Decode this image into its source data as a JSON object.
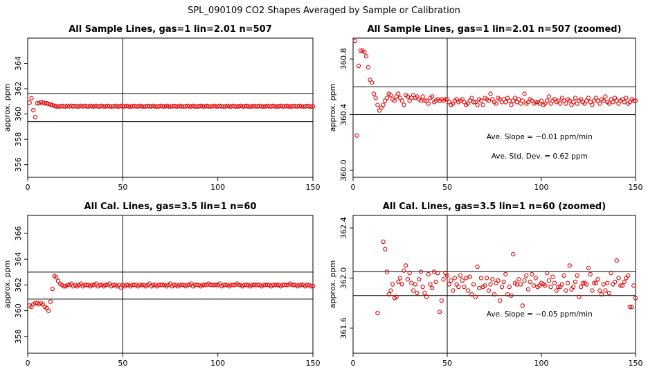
{
  "figure": {
    "title": "SPL_090109  CO2 Shapes Averaged by Sample or Calibration"
  },
  "chart_data": [
    {
      "type": "scatter",
      "title": "All Sample Lines, gas=1 lin=2.01 n=507",
      "xlabel": "",
      "ylabel": "approx. ppm",
      "xlim": [
        0,
        150
      ],
      "ylim": [
        355,
        366
      ],
      "xticks": [
        0,
        50,
        100,
        150
      ],
      "yticks": [
        356,
        358,
        360,
        362,
        364
      ],
      "vline": 50,
      "hlines": [
        359.4,
        361.6
      ],
      "color": "#e00000",
      "x": [
        1,
        2,
        3,
        4,
        5,
        6,
        7,
        8,
        9,
        10,
        11,
        12,
        13,
        14,
        15,
        16,
        17,
        18,
        19,
        20,
        21,
        22,
        23,
        24,
        25,
        26,
        27,
        28,
        29,
        30,
        31,
        32,
        33,
        34,
        35,
        36,
        37,
        38,
        39,
        40,
        41,
        42,
        43,
        44,
        45,
        46,
        47,
        48,
        49,
        50,
        51,
        52,
        53,
        54,
        55,
        56,
        57,
        58,
        59,
        60,
        61,
        62,
        63,
        64,
        65,
        66,
        67,
        68,
        69,
        70,
        71,
        72,
        73,
        74,
        75,
        76,
        77,
        78,
        79,
        80,
        81,
        82,
        83,
        84,
        85,
        86,
        87,
        88,
        89,
        90,
        91,
        92,
        93,
        94,
        95,
        96,
        97,
        98,
        99,
        100,
        101,
        102,
        103,
        104,
        105,
        106,
        107,
        108,
        109,
        110,
        111,
        112,
        113,
        114,
        115,
        116,
        117,
        118,
        119,
        120,
        121,
        122,
        123,
        124,
        125,
        126,
        127,
        128,
        129,
        130,
        131,
        132,
        133,
        134,
        135,
        136,
        137,
        138,
        139,
        140,
        141,
        142,
        143,
        144,
        145,
        146,
        147,
        148,
        149,
        150
      ],
      "y": [
        360.9,
        361.25,
        360.3,
        359.75,
        360.85,
        360.85,
        360.95,
        360.9,
        360.85,
        360.85,
        360.8,
        360.75,
        360.7,
        360.65,
        360.6,
        360.6,
        360.6,
        360.65,
        360.6,
        360.6,
        360.65,
        360.6,
        360.65,
        360.6,
        360.65,
        360.6,
        360.6,
        360.65,
        360.6,
        360.65,
        360.6,
        360.6,
        360.65,
        360.6,
        360.6,
        360.65,
        360.6,
        360.6,
        360.65,
        360.6,
        360.6,
        360.65,
        360.6,
        360.6,
        360.6,
        360.65,
        360.6,
        360.6,
        360.65,
        360.6,
        360.6,
        360.65,
        360.6,
        360.6,
        360.6,
        360.65,
        360.6,
        360.6,
        360.65,
        360.6,
        360.6,
        360.6,
        360.65,
        360.6,
        360.6,
        360.65,
        360.6,
        360.6,
        360.6,
        360.65,
        360.6,
        360.6,
        360.65,
        360.6,
        360.6,
        360.6,
        360.65,
        360.6,
        360.6,
        360.65,
        360.6,
        360.6,
        360.6,
        360.65,
        360.6,
        360.6,
        360.65,
        360.6,
        360.6,
        360.6,
        360.65,
        360.6,
        360.6,
        360.65,
        360.6,
        360.6,
        360.6,
        360.65,
        360.6,
        360.6,
        360.65,
        360.6,
        360.6,
        360.6,
        360.65,
        360.6,
        360.6,
        360.65,
        360.6,
        360.6,
        360.6,
        360.65,
        360.6,
        360.6,
        360.65,
        360.6,
        360.6,
        360.6,
        360.65,
        360.6,
        360.6,
        360.65,
        360.6,
        360.6,
        360.6,
        360.65,
        360.6,
        360.6,
        360.65,
        360.6,
        360.6,
        360.6,
        360.65,
        360.6,
        360.6,
        360.65,
        360.6,
        360.6,
        360.6,
        360.65,
        360.6,
        360.6,
        360.65,
        360.6,
        360.6,
        360.6,
        360.65,
        360.6,
        360.6,
        360.6
      ],
      "annotations": []
    },
    {
      "type": "scatter",
      "title": "All Sample Lines, gas=1 lin=2.01 n=507 (zoomed)",
      "xlabel": "",
      "ylabel": "approx. ppm",
      "xlim": [
        0,
        150
      ],
      "ylim": [
        359.95,
        360.95
      ],
      "xticks": [
        0,
        50,
        100,
        150
      ],
      "yticks": [
        360.0,
        360.4,
        360.8
      ],
      "ytick_labels": [
        "360.0",
        "360.4",
        "360.8"
      ],
      "vline": 50,
      "hlines": [
        360.6,
        360.4
      ],
      "color": "#e00000",
      "x": [
        1,
        2,
        3,
        4,
        5,
        6,
        7,
        8,
        9,
        10,
        11,
        12,
        13,
        14,
        15,
        16,
        17,
        18,
        19,
        20,
        21,
        22,
        23,
        24,
        25,
        26,
        27,
        28,
        29,
        30,
        31,
        32,
        33,
        34,
        35,
        36,
        37,
        38,
        39,
        40,
        41,
        42,
        43,
        44,
        45,
        46,
        47,
        48,
        49,
        50,
        51,
        52,
        53,
        54,
        55,
        56,
        57,
        58,
        59,
        60,
        61,
        62,
        63,
        64,
        65,
        66,
        67,
        68,
        69,
        70,
        71,
        72,
        73,
        74,
        75,
        76,
        77,
        78,
        79,
        80,
        81,
        82,
        83,
        84,
        85,
        86,
        87,
        88,
        89,
        90,
        91,
        92,
        93,
        94,
        95,
        96,
        97,
        98,
        99,
        100,
        101,
        102,
        103,
        104,
        105,
        106,
        107,
        108,
        109,
        110,
        111,
        112,
        113,
        114,
        115,
        116,
        117,
        118,
        119,
        120,
        121,
        122,
        123,
        124,
        125,
        126,
        127,
        128,
        129,
        130,
        131,
        132,
        133,
        134,
        135,
        136,
        137,
        138,
        139,
        140,
        141,
        142,
        143,
        144,
        145,
        146,
        147,
        148,
        149,
        150
      ],
      "y": [
        360.93,
        360.25,
        360.75,
        360.86,
        360.86,
        360.85,
        360.82,
        360.74,
        360.65,
        360.63,
        360.55,
        360.52,
        360.47,
        360.43,
        360.45,
        360.47,
        360.5,
        360.52,
        360.55,
        360.54,
        360.51,
        360.5,
        360.53,
        360.55,
        360.52,
        360.5,
        360.47,
        360.54,
        360.53,
        360.5,
        360.52,
        360.54,
        360.52,
        360.53,
        360.51,
        360.5,
        360.53,
        360.5,
        360.5,
        360.48,
        360.52,
        360.53,
        360.49,
        360.5,
        360.51,
        360.5,
        360.51,
        360.5,
        360.51,
        360.51,
        360.49,
        360.47,
        360.48,
        360.5,
        360.51,
        360.49,
        360.5,
        360.51,
        360.49,
        360.47,
        360.48,
        360.5,
        360.52,
        360.49,
        360.49,
        360.47,
        360.51,
        360.5,
        360.47,
        360.52,
        360.51,
        360.5,
        360.55,
        360.51,
        360.49,
        360.48,
        360.52,
        360.51,
        360.49,
        360.51,
        360.49,
        360.52,
        360.5,
        360.47,
        360.5,
        360.52,
        360.49,
        360.51,
        360.48,
        360.5,
        360.55,
        360.48,
        360.49,
        360.51,
        360.5,
        360.48,
        360.49,
        360.49,
        360.48,
        360.5,
        360.47,
        360.48,
        360.5,
        360.53,
        360.48,
        360.5,
        360.51,
        360.49,
        360.5,
        360.48,
        360.52,
        360.5,
        360.48,
        360.51,
        360.5,
        360.47,
        360.49,
        360.52,
        360.48,
        360.5,
        360.51,
        360.49,
        360.48,
        360.5,
        360.52,
        360.49,
        360.47,
        360.5,
        360.52,
        360.5,
        360.48,
        360.51,
        360.5,
        360.53,
        360.49,
        360.48,
        360.51,
        360.49,
        360.52,
        360.5,
        360.48,
        360.5,
        360.51,
        360.49,
        360.52,
        360.48,
        360.49,
        360.51,
        360.5,
        360.5
      ],
      "annotations": [
        "Ave. Slope = −0.01  ppm/min",
        "Ave. Std. Dev. = 0.62  ppm"
      ]
    },
    {
      "type": "scatter",
      "title": "All Cal. Lines, gas=3.5 lin=1 n=60",
      "xlabel": "",
      "ylabel": "approx. ppm",
      "xlim": [
        0,
        150
      ],
      "ylim": [
        356.7,
        367.4
      ],
      "xticks": [
        0,
        50,
        100,
        150
      ],
      "yticks": [
        358,
        360,
        362,
        364,
        366
      ],
      "vline": 50,
      "hlines": [
        363.0,
        360.9
      ],
      "color": "#e00000",
      "x": [
        1,
        2,
        3,
        4,
        5,
        6,
        7,
        8,
        9,
        10,
        11,
        12,
        13,
        14,
        15,
        16,
        17,
        18,
        19,
        20,
        21,
        22,
        23,
        24,
        25,
        26,
        27,
        28,
        29,
        30,
        31,
        32,
        33,
        34,
        35,
        36,
        37,
        38,
        39,
        40,
        41,
        42,
        43,
        44,
        45,
        46,
        47,
        48,
        49,
        50,
        51,
        52,
        53,
        54,
        55,
        56,
        57,
        58,
        59,
        60,
        61,
        62,
        63,
        64,
        65,
        66,
        67,
        68,
        69,
        70,
        71,
        72,
        73,
        74,
        75,
        76,
        77,
        78,
        79,
        80,
        81,
        82,
        83,
        84,
        85,
        86,
        87,
        88,
        89,
        90,
        91,
        92,
        93,
        94,
        95,
        96,
        97,
        98,
        99,
        100,
        101,
        102,
        103,
        104,
        105,
        106,
        107,
        108,
        109,
        110,
        111,
        112,
        113,
        114,
        115,
        116,
        117,
        118,
        119,
        120,
        121,
        122,
        123,
        124,
        125,
        126,
        127,
        128,
        129,
        130,
        131,
        132,
        133,
        134,
        135,
        136,
        137,
        138,
        139,
        140,
        141,
        142,
        143,
        144,
        145,
        146,
        147,
        148,
        149,
        150
      ],
      "y": [
        360.4,
        360.3,
        360.5,
        360.6,
        360.6,
        360.5,
        360.6,
        360.5,
        360.3,
        360.2,
        360.0,
        360.7,
        361.7,
        362.7,
        362.6,
        362.3,
        362.1,
        362.0,
        361.9,
        361.9,
        362.0,
        362.0,
        362.1,
        361.9,
        362.0,
        361.9,
        362.0,
        362.1,
        361.9,
        362.0,
        362.0,
        362.0,
        361.9,
        362.0,
        362.0,
        362.1,
        361.9,
        362.0,
        362.0,
        361.9,
        362.0,
        362.0,
        362.1,
        361.9,
        362.0,
        362.0,
        361.9,
        362.0,
        361.8,
        362.0,
        361.9,
        362.0,
        362.0,
        361.9,
        362.0,
        362.0,
        362.0,
        361.9,
        362.0,
        362.0,
        362.0,
        361.9,
        362.0,
        362.1,
        361.9,
        362.0,
        362.0,
        361.9,
        362.0,
        362.0,
        362.0,
        362.0,
        361.9,
        362.0,
        362.1,
        361.9,
        362.0,
        362.0,
        361.9,
        362.0,
        362.0,
        362.0,
        361.9,
        362.0,
        362.0,
        362.1,
        361.9,
        362.0,
        362.0,
        362.0,
        361.9,
        362.0,
        362.0,
        362.0,
        362.1,
        362.0,
        362.0,
        362.0,
        362.0,
        362.0,
        362.1,
        361.9,
        362.0,
        362.0,
        362.0,
        361.9,
        362.0,
        362.0,
        362.0,
        362.1,
        362.0,
        362.0,
        361.9,
        362.0,
        362.0,
        362.0,
        361.9,
        362.0,
        362.0,
        362.0,
        362.0,
        362.0,
        361.9,
        362.0,
        362.0,
        362.0,
        362.0,
        361.9,
        362.0,
        362.0,
        362.0,
        362.0,
        361.9,
        362.0,
        362.0,
        362.0,
        362.0,
        362.1,
        362.0,
        362.0,
        362.0,
        361.9,
        362.0,
        362.0,
        362.0,
        361.9,
        362.0,
        362.0,
        361.9,
        361.9
      ],
      "annotations": []
    },
    {
      "type": "scatter",
      "title": "All Cal. Lines, gas=3.5 lin=1 n=60 (zoomed)",
      "xlabel": "",
      "ylabel": "approx. ppm",
      "xlim": [
        0,
        150
      ],
      "ylim": [
        361.4,
        362.5
      ],
      "xticks": [
        0,
        50,
        100,
        150
      ],
      "yticks": [
        361.6,
        362.0,
        362.4
      ],
      "ytick_labels": [
        "361.6",
        "362.0",
        "362.4"
      ],
      "vline": 50,
      "hlines": [
        362.05,
        361.86
      ],
      "color": "#e00000",
      "x": [
        13,
        16,
        17,
        18,
        19,
        20,
        21,
        22,
        23,
        24,
        25,
        26,
        27,
        28,
        29,
        30,
        31,
        32,
        33,
        34,
        35,
        36,
        37,
        38,
        39,
        40,
        41,
        42,
        43,
        44,
        45,
        46,
        47,
        48,
        49,
        50,
        51,
        52,
        53,
        54,
        55,
        56,
        57,
        58,
        59,
        60,
        61,
        62,
        63,
        64,
        65,
        66,
        67,
        68,
        69,
        70,
        71,
        72,
        73,
        74,
        75,
        76,
        77,
        78,
        79,
        80,
        81,
        82,
        83,
        84,
        85,
        86,
        87,
        88,
        89,
        90,
        91,
        92,
        93,
        94,
        95,
        96,
        97,
        98,
        99,
        100,
        101,
        102,
        103,
        104,
        105,
        106,
        107,
        108,
        109,
        110,
        111,
        112,
        113,
        114,
        115,
        116,
        117,
        118,
        119,
        120,
        121,
        122,
        123,
        124,
        125,
        126,
        127,
        128,
        129,
        130,
        131,
        132,
        133,
        134,
        135,
        136,
        137,
        138,
        139,
        140,
        141,
        142,
        143,
        144,
        145,
        146,
        147,
        148,
        149,
        150
      ],
      "y": [
        361.72,
        362.29,
        362.23,
        362.05,
        361.87,
        361.9,
        361.95,
        361.84,
        361.85,
        361.97,
        362.0,
        361.95,
        362.06,
        362.1,
        361.99,
        362.04,
        361.96,
        361.9,
        361.95,
        361.88,
        361.99,
        362.05,
        361.93,
        361.88,
        361.85,
        362.03,
        361.95,
        361.92,
        362.05,
        361.97,
        362.04,
        361.73,
        361.82,
        361.99,
        362.04,
        362.02,
        361.95,
        361.98,
        361.9,
        362.0,
        361.95,
        361.93,
        362.02,
        361.98,
        361.93,
        362.0,
        361.9,
        362.01,
        361.87,
        361.95,
        361.85,
        362.09,
        361.92,
        362.0,
        361.93,
        361.94,
        362.0,
        361.9,
        361.95,
        361.99,
        361.87,
        361.96,
        361.98,
        361.82,
        361.93,
        361.97,
        362.03,
        361.87,
        361.93,
        361.86,
        362.19,
        361.96,
        361.95,
        361.99,
        361.95,
        361.78,
        361.98,
        362.02,
        361.91,
        361.97,
        362.03,
        361.94,
        362.0,
        361.93,
        361.94,
        361.96,
        361.95,
        361.94,
        362.04,
        361.98,
        361.93,
        362.01,
        361.96,
        361.9,
        361.93,
        361.93,
        361.95,
        362.02,
        361.9,
        361.96,
        362.1,
        361.91,
        361.93,
        361.97,
        362.02,
        361.85,
        361.93,
        361.96,
        361.96,
        361.95,
        362.08,
        362.03,
        361.9,
        361.96,
        361.96,
        361.99,
        361.9,
        361.87,
        361.95,
        361.9,
        361.96,
        361.88,
        362.04,
        361.95,
        361.97,
        362.14,
        362.0,
        361.94,
        361.94,
        361.97,
        362.0,
        362.02,
        361.77,
        361.77,
        361.94,
        361.84
      ],
      "annotations": [
        "Ave. Slope = −0.05  ppm/min"
      ]
    }
  ]
}
